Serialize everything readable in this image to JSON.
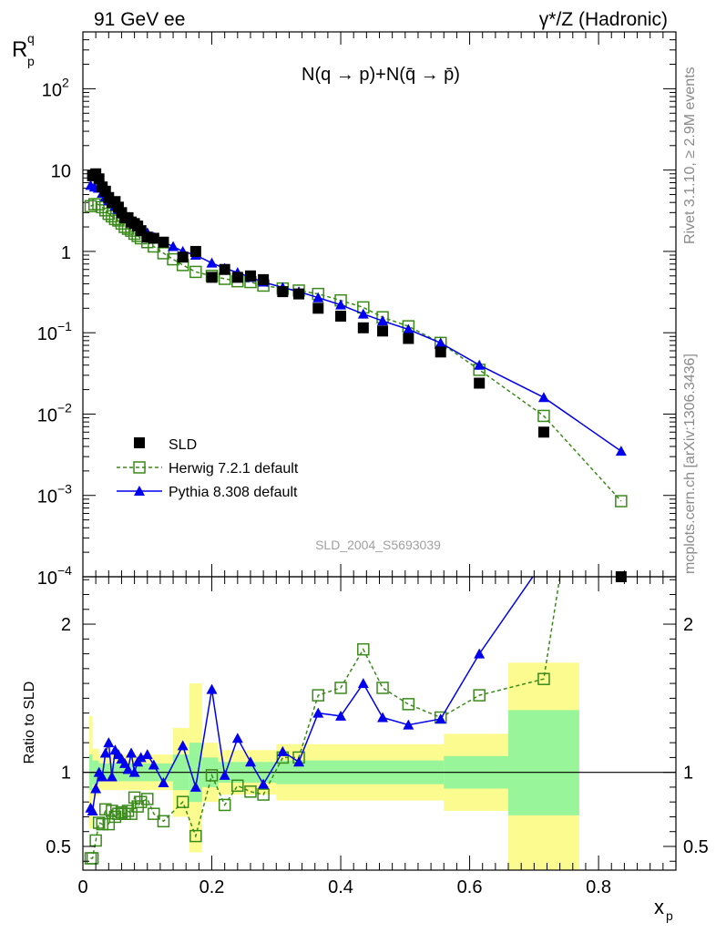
{
  "header": {
    "left_title": "91 GeV ee",
    "right_title": "γ*/Z (Hadronic)"
  },
  "side_labels": {
    "rivet": "Rivet 3.1.10, ≥ 2.9M events",
    "mcplots": "mcplots.cern.ch [arXiv:1306.3436]"
  },
  "colors": {
    "data": "#000000",
    "herwig": "#3a8a1a",
    "pythia": "#0000ee",
    "band_inner": "#99f599",
    "band_outer": "#fbfb8f"
  },
  "chart_data": [
    {
      "type": "line",
      "panel": "main",
      "title": "N(q → p)+N(q̄ → p̄)",
      "ylabel_main": "R",
      "ylabel_sup": "q",
      "ylabel_sub": "p",
      "xlabel": "",
      "xlim": [
        0,
        0.92
      ],
      "ylim": [
        0.0001,
        500
      ],
      "yscale": "log",
      "yticks": [
        {
          "v": 100,
          "base": "10",
          "exp": "2"
        },
        {
          "v": 10,
          "base": "10",
          "exp": ""
        },
        {
          "v": 1,
          "base": "1",
          "exp": ""
        },
        {
          "v": 0.1,
          "base": "10",
          "exp": "−1"
        },
        {
          "v": 0.01,
          "base": "10",
          "exp": "−2"
        },
        {
          "v": 0.001,
          "base": "10",
          "exp": "−3"
        },
        {
          "v": 0.0001,
          "base": "10",
          "exp": "−4"
        }
      ],
      "watermark": "SLD_2004_S5693039",
      "legend_position": "lower-left",
      "series": [
        {
          "name": "SLD",
          "style": "data",
          "x": [
            0.015,
            0.02,
            0.025,
            0.03,
            0.035,
            0.04,
            0.045,
            0.05,
            0.055,
            0.06,
            0.065,
            0.07,
            0.075,
            0.08,
            0.085,
            0.09,
            0.1,
            0.11,
            0.125,
            0.155,
            0.175,
            0.2,
            0.22,
            0.24,
            0.26,
            0.28,
            0.31,
            0.335,
            0.365,
            0.4,
            0.435,
            0.465,
            0.505,
            0.555,
            0.615,
            0.715,
            0.835
          ],
          "y": [
            8.5,
            9.0,
            7.8,
            6.2,
            5.5,
            4.6,
            4.0,
            4.1,
            3.5,
            3.0,
            2.6,
            2.6,
            2.3,
            2.2,
            2.05,
            1.8,
            1.5,
            1.45,
            1.3,
            0.85,
            1.0,
            0.48,
            0.6,
            0.48,
            0.5,
            0.45,
            0.32,
            0.3,
            0.2,
            0.16,
            0.115,
            0.105,
            0.085,
            0.058,
            0.024,
            0.006,
            8.5e-05
          ]
        },
        {
          "name": "Herwig 7.2.1 default",
          "style": "herwig",
          "x": [
            0.012,
            0.018,
            0.024,
            0.03,
            0.035,
            0.04,
            0.045,
            0.05,
            0.055,
            0.06,
            0.065,
            0.07,
            0.075,
            0.08,
            0.085,
            0.09,
            0.1,
            0.11,
            0.125,
            0.14,
            0.155,
            0.175,
            0.2,
            0.22,
            0.24,
            0.26,
            0.28,
            0.31,
            0.335,
            0.365,
            0.4,
            0.435,
            0.465,
            0.505,
            0.555,
            0.615,
            0.715,
            0.835
          ],
          "y": [
            3.6,
            3.8,
            3.8,
            3.5,
            3.2,
            2.9,
            2.7,
            2.5,
            2.4,
            2.2,
            2.0,
            1.9,
            1.8,
            1.65,
            1.55,
            1.45,
            1.3,
            1.15,
            0.95,
            0.8,
            0.68,
            0.56,
            0.5,
            0.46,
            0.43,
            0.42,
            0.38,
            0.35,
            0.33,
            0.3,
            0.25,
            0.205,
            0.155,
            0.12,
            0.075,
            0.035,
            0.0095,
            0.00085
          ]
        },
        {
          "name": "Pythia 8.308 default",
          "style": "pythia",
          "x": [
            0.012,
            0.018,
            0.024,
            0.03,
            0.035,
            0.04,
            0.045,
            0.05,
            0.055,
            0.06,
            0.065,
            0.07,
            0.075,
            0.08,
            0.085,
            0.09,
            0.1,
            0.11,
            0.125,
            0.14,
            0.155,
            0.175,
            0.2,
            0.22,
            0.24,
            0.26,
            0.28,
            0.31,
            0.335,
            0.365,
            0.4,
            0.435,
            0.465,
            0.505,
            0.555,
            0.615,
            0.715,
            0.835
          ],
          "y": [
            6.5,
            6.2,
            6.0,
            5.2,
            4.7,
            4.2,
            3.9,
            3.6,
            3.3,
            3.0,
            2.8,
            2.6,
            2.4,
            2.2,
            2.05,
            1.9,
            1.7,
            1.5,
            1.3,
            1.15,
            1.0,
            0.9,
            0.72,
            0.62,
            0.55,
            0.48,
            0.42,
            0.36,
            0.32,
            0.27,
            0.22,
            0.17,
            0.14,
            0.11,
            0.075,
            0.04,
            0.016,
            0.0035
          ]
        }
      ]
    },
    {
      "type": "line",
      "panel": "ratio",
      "ylabel": "Ratio to SLD",
      "xlabel_main": "x",
      "xlabel_sub": "p",
      "xlim": [
        0,
        0.92
      ],
      "ylim": [
        0.34,
        2.32
      ],
      "yticks": [
        {
          "v": 2,
          "label": "2"
        },
        {
          "v": 1,
          "label": "1"
        },
        {
          "v": 0.5,
          "label": "0.5"
        }
      ],
      "xticks": [
        {
          "v": 0,
          "label": "0"
        },
        {
          "v": 0.2,
          "label": "0.2"
        },
        {
          "v": 0.4,
          "label": "0.4"
        },
        {
          "v": 0.6,
          "label": "0.6"
        },
        {
          "v": 0.8,
          "label": "0.8"
        }
      ],
      "uncertainty_bands": [
        {
          "x0": 0.01,
          "x1": 0.015,
          "inner": [
            0.88,
            1.12
          ],
          "outer": [
            0.62,
            1.38
          ]
        },
        {
          "x0": 0.015,
          "x1": 0.025,
          "inner": [
            0.92,
            1.08
          ],
          "outer": [
            0.84,
            1.16
          ]
        },
        {
          "x0": 0.025,
          "x1": 0.14,
          "inner": [
            0.94,
            1.06
          ],
          "outer": [
            0.88,
            1.12
          ]
        },
        {
          "x0": 0.14,
          "x1": 0.165,
          "inner": [
            0.88,
            1.12
          ],
          "outer": [
            0.7,
            1.3
          ]
        },
        {
          "x0": 0.165,
          "x1": 0.185,
          "inner": [
            0.8,
            1.2
          ],
          "outer": [
            0.46,
            1.6
          ]
        },
        {
          "x0": 0.185,
          "x1": 0.21,
          "inner": [
            0.9,
            1.1
          ],
          "outer": [
            0.8,
            1.2
          ]
        },
        {
          "x0": 0.21,
          "x1": 0.3,
          "inner": [
            0.93,
            1.07
          ],
          "outer": [
            0.85,
            1.15
          ]
        },
        {
          "x0": 0.3,
          "x1": 0.56,
          "inner": [
            0.92,
            1.08
          ],
          "outer": [
            0.81,
            1.19
          ]
        },
        {
          "x0": 0.56,
          "x1": 0.66,
          "inner": [
            0.89,
            1.11
          ],
          "outer": [
            0.74,
            1.26
          ]
        },
        {
          "x0": 0.66,
          "x1": 0.77,
          "inner": [
            0.71,
            1.42
          ],
          "outer": [
            0.34,
            1.74
          ]
        }
      ],
      "reference_line": 1,
      "series": [
        {
          "name": "Herwig 7.2.1 default",
          "style": "herwig",
          "x": [
            0.012,
            0.015,
            0.02,
            0.025,
            0.03,
            0.035,
            0.04,
            0.045,
            0.05,
            0.055,
            0.06,
            0.065,
            0.07,
            0.075,
            0.08,
            0.085,
            0.09,
            0.1,
            0.11,
            0.125,
            0.155,
            0.175,
            0.2,
            0.22,
            0.24,
            0.26,
            0.28,
            0.31,
            0.335,
            0.365,
            0.4,
            0.435,
            0.465,
            0.505,
            0.555,
            0.615,
            0.715,
            0.74
          ],
          "y": [
            0.42,
            0.42,
            0.54,
            0.66,
            0.65,
            0.75,
            0.65,
            0.74,
            0.7,
            0.72,
            0.73,
            0.72,
            0.74,
            0.72,
            0.83,
            0.77,
            0.8,
            0.82,
            0.72,
            0.67,
            0.8,
            0.57,
            0.98,
            0.78,
            0.91,
            0.87,
            0.85,
            1.1,
            1.1,
            1.52,
            1.57,
            1.83,
            1.57,
            1.46,
            1.37,
            1.52,
            1.63,
            2.32
          ]
        },
        {
          "name": "Pythia 8.308 default",
          "style": "pythia",
          "x": [
            0.012,
            0.015,
            0.02,
            0.025,
            0.03,
            0.035,
            0.04,
            0.045,
            0.05,
            0.055,
            0.06,
            0.065,
            0.07,
            0.075,
            0.08,
            0.085,
            0.09,
            0.1,
            0.11,
            0.125,
            0.155,
            0.175,
            0.2,
            0.22,
            0.24,
            0.26,
            0.28,
            0.31,
            0.335,
            0.365,
            0.4,
            0.435,
            0.465,
            0.505,
            0.555,
            0.615,
            0.698
          ],
          "y": [
            0.76,
            0.74,
            0.89,
            1.0,
            0.97,
            1.13,
            1.2,
            0.97,
            1.15,
            1.12,
            1.09,
            1.06,
            1.02,
            1.13,
            1.0,
            1.07,
            1.1,
            1.12,
            1.05,
            0.93,
            1.18,
            0.9,
            1.56,
            0.98,
            1.23,
            1.07,
            0.92,
            1.14,
            1.07,
            1.4,
            1.38,
            1.6,
            1.37,
            1.32,
            1.36,
            1.8,
            2.32
          ]
        }
      ]
    }
  ]
}
